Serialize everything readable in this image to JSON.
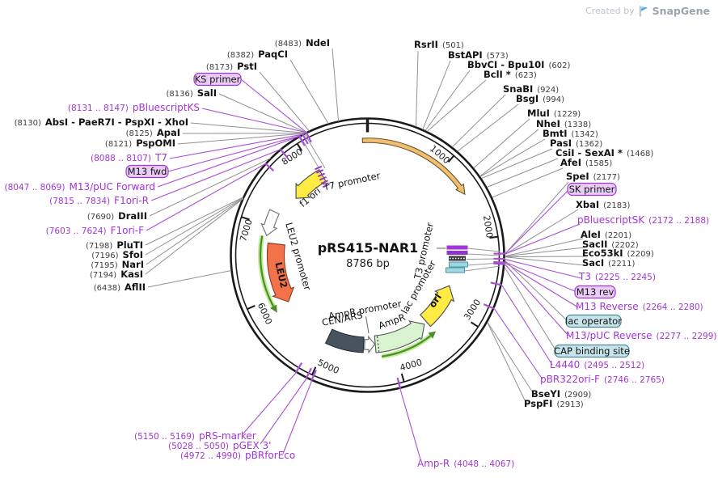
{
  "credit": {
    "prefix": "Created by",
    "brand": "SnapGene"
  },
  "plasmid": {
    "name": "pRS415-NAR1",
    "size_label": "8786 bp",
    "length_bp": 8786
  },
  "ticks": [
    {
      "label": "1000",
      "pos": 1000
    },
    {
      "label": "2000",
      "pos": 2000
    },
    {
      "label": "3000",
      "pos": 3000
    },
    {
      "label": "4000",
      "pos": 4000
    },
    {
      "label": "5000",
      "pos": 5000
    },
    {
      "label": "6000",
      "pos": 6000
    },
    {
      "label": "7000",
      "pos": 7000
    },
    {
      "label": "8000",
      "pos": 8000
    }
  ],
  "features": [
    {
      "id": "nar1-arc",
      "label": "",
      "color": "#F0BE6E"
    },
    {
      "id": "f1-ori",
      "label": "f1 ori",
      "color": "#FFEB44"
    },
    {
      "id": "t7-promoter",
      "label": "T7 promoter",
      "color": "#9233CE"
    },
    {
      "id": "leu2-promoter",
      "label": "LEU2 promoter",
      "color": "#FFFFFF"
    },
    {
      "id": "leu2",
      "label": "LEU2",
      "color": "#F2724A"
    },
    {
      "id": "cen-ars",
      "label": "CEN/ARS",
      "color": "#47535F"
    },
    {
      "id": "ampr-promoter",
      "label": "AmpR promoter",
      "color": "#FFFFFF"
    },
    {
      "id": "ampr",
      "label": "AmpR",
      "color": "#D8F3CF"
    },
    {
      "id": "ori",
      "label": "ori",
      "color": "#FFEB44"
    },
    {
      "id": "lac-promoter",
      "label": "lac promoter",
      "color": "#9AD9E3"
    },
    {
      "id": "t3-promoter",
      "label": "T3 promoter",
      "color": "#A235D8"
    }
  ],
  "callouts": [
    {
      "id": "ndei",
      "kind": "enzyme",
      "order": "pos-first",
      "pos": "(8483)",
      "name": "NdeI"
    },
    {
      "id": "paqci",
      "kind": "enzyme",
      "order": "pos-first",
      "pos": "(8382)",
      "name": "PaqCI"
    },
    {
      "id": "psti",
      "kind": "enzyme",
      "order": "pos-first",
      "pos": "(8173)",
      "name": "PstI"
    },
    {
      "id": "ks-primer",
      "kind": "primer_box",
      "name": "KS primer"
    },
    {
      "id": "sali",
      "kind": "enzyme",
      "order": "pos-first",
      "pos": "(8136)",
      "name": "SalI"
    },
    {
      "id": "pbluescriptks",
      "kind": "primer",
      "order": "pos-first",
      "pos": "(8131 .. 8147)",
      "name": "pBluescriptKS"
    },
    {
      "id": "absgroup",
      "kind": "enzyme",
      "order": "pos-first",
      "pos": "(8130)",
      "name": "AbsI - PaeR7I - PspXI - XhoI"
    },
    {
      "id": "apai",
      "kind": "enzyme",
      "order": "pos-first",
      "pos": "(8125)",
      "name": "ApaI"
    },
    {
      "id": "pspomi",
      "kind": "enzyme",
      "order": "pos-first",
      "pos": "(8121)",
      "name": "PspOMI"
    },
    {
      "id": "t7",
      "kind": "primer",
      "order": "pos-first",
      "pos": "(8088 .. 8107)",
      "name": "T7"
    },
    {
      "id": "m13-fwd",
      "kind": "primer_box",
      "name": "M13 fwd"
    },
    {
      "id": "m13puc-forward",
      "kind": "primer",
      "order": "pos-first",
      "pos": "(8047 .. 8069)",
      "name": "M13/pUC Forward"
    },
    {
      "id": "f1ori-r",
      "kind": "primer",
      "order": "pos-first",
      "pos": "(7815 .. 7834)",
      "name": "F1ori-R"
    },
    {
      "id": "draiii",
      "kind": "enzyme",
      "order": "pos-first",
      "pos": "(7690)",
      "name": "DraIII"
    },
    {
      "id": "f1ori-f",
      "kind": "primer",
      "order": "pos-first",
      "pos": "(7603 .. 7624)",
      "name": "F1ori-F"
    },
    {
      "id": "pluti",
      "kind": "enzyme",
      "order": "pos-first",
      "pos": "(7198)",
      "name": "PluTI"
    },
    {
      "id": "sfoi",
      "kind": "enzyme",
      "order": "pos-first",
      "pos": "(7196)",
      "name": "SfoI"
    },
    {
      "id": "nari",
      "kind": "enzyme",
      "order": "pos-first",
      "pos": "(7195)",
      "name": "NarI"
    },
    {
      "id": "kasi",
      "kind": "enzyme",
      "order": "pos-first",
      "pos": "(7194)",
      "name": "KasI"
    },
    {
      "id": "aflii",
      "kind": "enzyme",
      "order": "pos-first",
      "pos": "(6438)",
      "name": "AflII"
    },
    {
      "id": "rsrii",
      "kind": "enzyme",
      "order": "name-first",
      "pos": "(501)",
      "name": "RsrII"
    },
    {
      "id": "bstapi",
      "kind": "enzyme",
      "order": "name-first",
      "pos": "(573)",
      "name": "BstAPI"
    },
    {
      "id": "bbvci",
      "kind": "enzyme",
      "order": "name-first",
      "pos": "(602)",
      "name": "BbvCI - Bpu10I"
    },
    {
      "id": "bcli",
      "kind": "enzyme",
      "order": "name-first",
      "pos": "(623)",
      "name": "BclI *"
    },
    {
      "id": "snabi",
      "kind": "enzyme",
      "order": "name-first",
      "pos": "(924)",
      "name": "SnaBI"
    },
    {
      "id": "bsgi",
      "kind": "enzyme",
      "order": "name-first",
      "pos": "(994)",
      "name": "BsgI"
    },
    {
      "id": "mlui",
      "kind": "enzyme",
      "order": "name-first",
      "pos": "(1229)",
      "name": "MluI"
    },
    {
      "id": "nhei",
      "kind": "enzyme",
      "order": "name-first",
      "pos": "(1338)",
      "name": "NheI"
    },
    {
      "id": "bmti",
      "kind": "enzyme",
      "order": "name-first",
      "pos": "(1342)",
      "name": "BmtI"
    },
    {
      "id": "pasi",
      "kind": "enzyme",
      "order": "name-first",
      "pos": "(1362)",
      "name": "PasI"
    },
    {
      "id": "csii",
      "kind": "enzyme",
      "order": "name-first",
      "pos": "(1468)",
      "name": "CsiI - SexAI *"
    },
    {
      "id": "afei",
      "kind": "enzyme",
      "order": "name-first",
      "pos": "(1585)",
      "name": "AfeI"
    },
    {
      "id": "spei",
      "kind": "enzyme",
      "order": "name-first",
      "pos": "(2177)",
      "name": "SpeI"
    },
    {
      "id": "sk-primer",
      "kind": "primer_box",
      "name": "SK primer"
    },
    {
      "id": "xbai",
      "kind": "enzyme",
      "order": "name-first",
      "pos": "(2183)",
      "name": "XbaI"
    },
    {
      "id": "pbluescriptsk",
      "kind": "primer",
      "order": "name-first",
      "pos": "(2172 .. 2188)",
      "name": "pBluescriptSK"
    },
    {
      "id": "alei",
      "kind": "enzyme",
      "order": "name-first",
      "pos": "(2201)",
      "name": "AleI"
    },
    {
      "id": "sacii",
      "kind": "enzyme",
      "order": "name-first",
      "pos": "(2202)",
      "name": "SacII"
    },
    {
      "id": "eco53ki",
      "kind": "enzyme",
      "order": "name-first",
      "pos": "(2209)",
      "name": "Eco53kI"
    },
    {
      "id": "saci",
      "kind": "enzyme",
      "order": "name-first",
      "pos": "(2211)",
      "name": "SacI"
    },
    {
      "id": "t3",
      "kind": "primer",
      "order": "name-first",
      "pos": "(2225 .. 2245)",
      "name": "T3"
    },
    {
      "id": "m13-rev",
      "kind": "primer_box",
      "name": "M13 rev"
    },
    {
      "id": "m13-reverse",
      "kind": "primer",
      "order": "name-first",
      "pos": "(2264 .. 2280)",
      "name": "M13 Reverse"
    },
    {
      "id": "lac-operator",
      "kind": "site_box",
      "name": "lac operator"
    },
    {
      "id": "m13puc-reverse",
      "kind": "primer",
      "order": "name-first",
      "pos": "(2277 .. 2299)",
      "name": "M13/pUC Reverse"
    },
    {
      "id": "cap-binding-site",
      "kind": "site_box",
      "name": "CAP binding site"
    },
    {
      "id": "l4440",
      "kind": "primer",
      "order": "name-first",
      "pos": "(2495 .. 2512)",
      "name": "L4440"
    },
    {
      "id": "pbr322ori-f",
      "kind": "primer",
      "order": "name-first",
      "pos": "(2746 .. 2765)",
      "name": "pBR322ori-F"
    },
    {
      "id": "bseyi",
      "kind": "enzyme",
      "order": "name-first",
      "pos": "(2909)",
      "name": "BseYI"
    },
    {
      "id": "pspfi",
      "kind": "enzyme",
      "order": "name-first",
      "pos": "(2913)",
      "name": "PspFI"
    },
    {
      "id": "prs-marker",
      "kind": "primer",
      "order": "pos-first",
      "pos": "(5150 .. 5169)",
      "name": "pRS-marker"
    },
    {
      "id": "pgex-3",
      "kind": "primer",
      "order": "pos-first",
      "pos": "(5028 .. 5050)",
      "name": "pGEX 3'"
    },
    {
      "id": "pbrforeco",
      "kind": "primer",
      "order": "pos-first",
      "pos": "(4972 .. 4990)",
      "name": "pBRforEco"
    },
    {
      "id": "amp-r",
      "kind": "primer",
      "order": "name-first",
      "pos": "(4048 .. 4067)",
      "name": "Amp-R"
    }
  ],
  "colors": {
    "primer_purple": "#A335D6",
    "primer_box_fill": "#E9CCF6",
    "site_box_fill": "#C7E4EB",
    "site_box_border": "#4E8796",
    "backbone": "#1a1a1a",
    "orf_green": "#4D8C2B",
    "leu2_orange": "#F2724A",
    "ampr_green": "#D8F3CF",
    "yellow": "#FFEB44",
    "cen_slate": "#47535F",
    "nar1_tan": "#F0BE6E"
  }
}
